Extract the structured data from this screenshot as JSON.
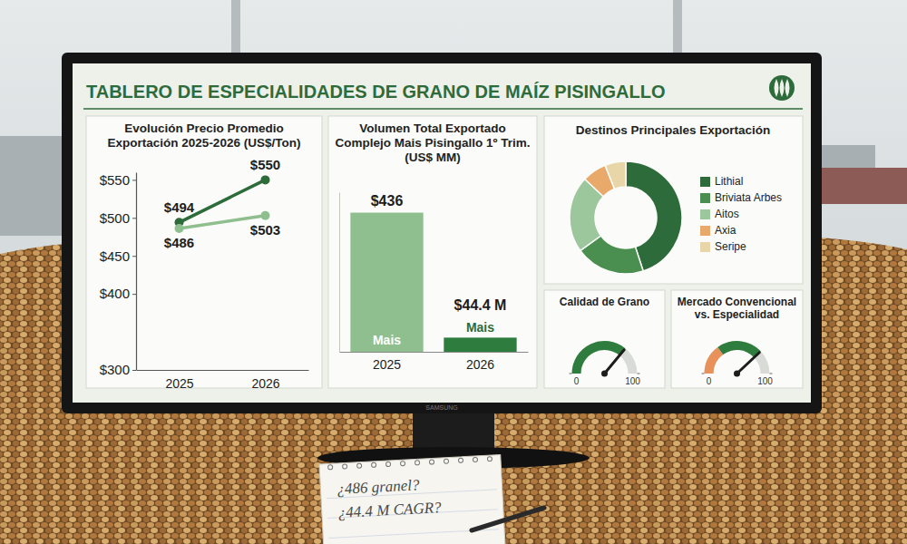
{
  "title": "TABLERO DE ESPECIALIDADES DE GRANO DE MAÍZ PISINGALLO",
  "chart_data": [
    {
      "type": "line",
      "title": "Evolución Precio Promedio Exportación 2025-2026 (US$/Ton)",
      "categories": [
        "2025",
        "2026"
      ],
      "series": [
        {
          "color": "#2e6b3a",
          "marker": "circle",
          "values": [
            494,
            550
          ],
          "value_labels": [
            "$494",
            "$550"
          ]
        },
        {
          "color": "#8fbf8f",
          "marker": "circle",
          "values": [
            486,
            503
          ],
          "value_labels": [
            "$486",
            "$503"
          ]
        }
      ],
      "ylim": [
        300,
        560
      ],
      "yticks": [
        {
          "value": 300,
          "label": "$300"
        },
        {
          "value": 400,
          "label": "$400"
        },
        {
          "value": 450,
          "label": "$450"
        },
        {
          "value": 500,
          "label": "$500"
        },
        {
          "value": 550,
          "label": "$550"
        }
      ],
      "grid": false,
      "data_labels": true
    },
    {
      "type": "bar",
      "title": "Volumen Total Exportado Complejo Mais Pisingallo 1º Trim. (US$ MM)",
      "categories": [
        "2025",
        "2026"
      ],
      "values": [
        436,
        44.4
      ],
      "value_labels": [
        "$436",
        "$44.4 M"
      ],
      "bar_texts": [
        "Mais",
        "Mais"
      ],
      "colors": [
        "#8fbf8f",
        "#2e7d3e"
      ],
      "ylim": [
        0,
        500
      ],
      "tick_labels": "x",
      "data_labels": true
    },
    {
      "type": "donut",
      "title": "Destinos Principales Exportación",
      "categories": [
        "Lithial",
        "Briviata Arbes",
        "Aitos",
        "Axia",
        "Seripe"
      ],
      "values": [
        45,
        20,
        22,
        7,
        6
      ],
      "colors": [
        "#2e6b3a",
        "#4a8f4f",
        "#9cc79c",
        "#e8a96b",
        "#e8d5a8"
      ],
      "legend": "right"
    },
    {
      "type": "gauge",
      "title": "Calidad de Grano",
      "values": [
        72
      ],
      "colors": [
        "#2e7d3e"
      ],
      "ylim": [
        0,
        100
      ],
      "yticks": [
        0,
        100
      ]
    },
    {
      "type": "gauge",
      "title": "Mercado Convencional vs. Especialidad",
      "values": [
        30,
        46
      ],
      "colors": [
        "#e8915a",
        "#2e7d3e"
      ],
      "ylim": [
        0,
        100
      ],
      "yticks": [
        0,
        100
      ]
    }
  ],
  "note": [
    "¿486 granel?",
    "¿44.4 M CAGR?"
  ],
  "brand": "SAMSUNG"
}
